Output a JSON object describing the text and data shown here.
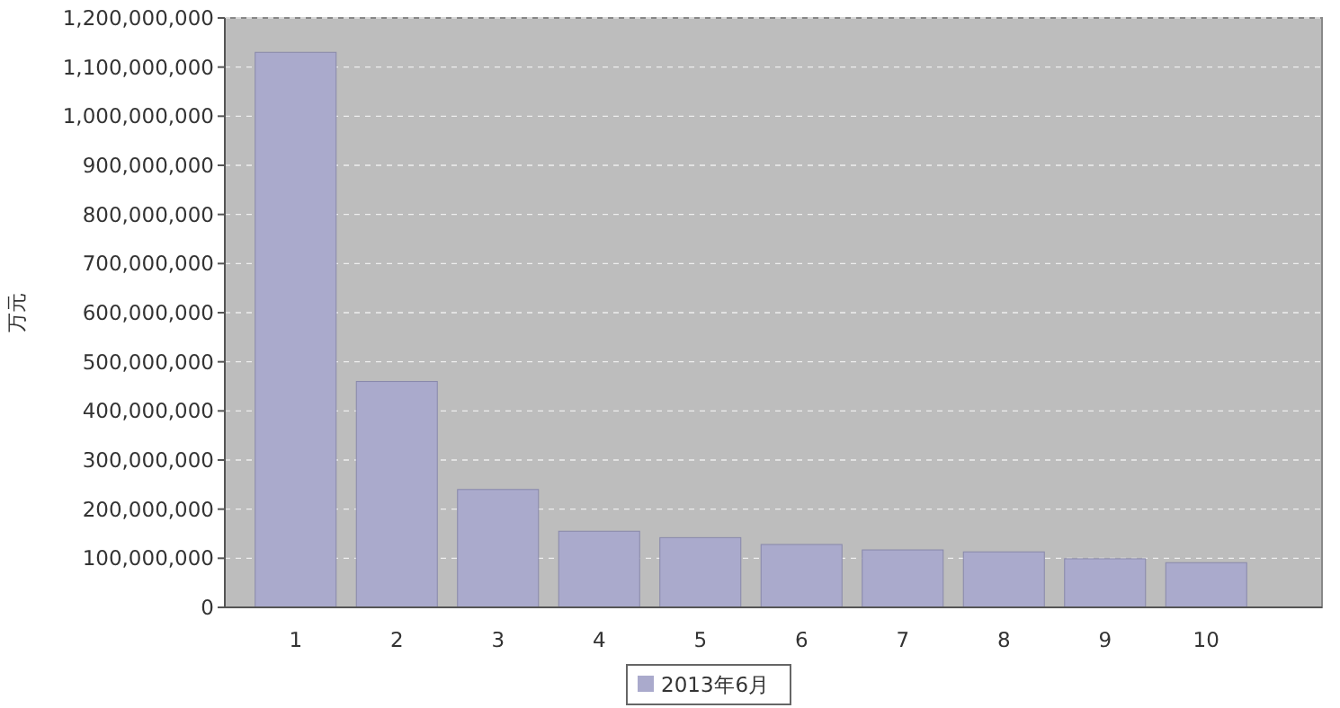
{
  "chart_data": {
    "type": "bar",
    "ylabel": "万元",
    "categories": [
      "1",
      "2",
      "3",
      "4",
      "5",
      "6",
      "7",
      "8",
      "9",
      "10"
    ],
    "series": [
      {
        "name": "2013年6月",
        "color": "#aaaacc",
        "values": [
          1130000000,
          460000000,
          240000000,
          155000000,
          142000000,
          128000000,
          117000000,
          113000000,
          99000000,
          91000000
        ]
      }
    ],
    "ylim": [
      0,
      1200000000
    ],
    "yticks": [
      {
        "value": 0,
        "label": "0"
      },
      {
        "value": 100000000,
        "label": "100,000,000"
      },
      {
        "value": 200000000,
        "label": "200,000,000"
      },
      {
        "value": 300000000,
        "label": "300,000,000"
      },
      {
        "value": 400000000,
        "label": "400,000,000"
      },
      {
        "value": 500000000,
        "label": "500,000,000"
      },
      {
        "value": 600000000,
        "label": "600,000,000"
      },
      {
        "value": 700000000,
        "label": "700,000,000"
      },
      {
        "value": 800000000,
        "label": "800,000,000"
      },
      {
        "value": 900000000,
        "label": "900,000,000"
      },
      {
        "value": 1000000000,
        "label": "1,000,000,000"
      },
      {
        "value": 1100000000,
        "label": "1,100,000,000"
      },
      {
        "value": 1200000000,
        "label": "1,200,000,000"
      }
    ],
    "grid": "y",
    "legend": "bottom"
  }
}
